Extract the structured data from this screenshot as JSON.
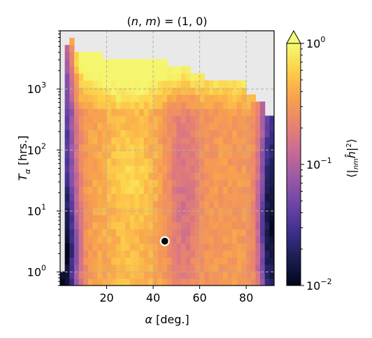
{
  "chart_data": {
    "type": "heatmap",
    "title": "(n, m) = (1, 0)",
    "xlabel": "α [deg.]",
    "ylabel": "T_α [hrs.]",
    "colorbar_label": "⟨|_{nm}ĥ|²⟩",
    "x_range": [
      0,
      92
    ],
    "y_range": [
      0.6,
      9000
    ],
    "y_scale": "log",
    "x_ticks": [
      20,
      40,
      60,
      80
    ],
    "x_tick_labels": [
      "20",
      "40",
      "60",
      "80"
    ],
    "y_ticks": [
      1,
      10,
      100,
      1000
    ],
    "y_tick_labels": [
      "10^0",
      "10^1",
      "10^2",
      "10^3"
    ],
    "color_scale": "log",
    "color_range": [
      0.01,
      1
    ],
    "colorbar_ticks": [
      0.01,
      0.1,
      1
    ],
    "colorbar_tick_labels": [
      "10^-2",
      "10^-1",
      "10^0"
    ],
    "colormap_stops": [
      "#03051a",
      "#1b1d4f",
      "#3f2f8d",
      "#6a45a7",
      "#9a5aa5",
      "#c96b94",
      "#e9836f",
      "#f8a24d",
      "#fdd049",
      "#f4fa72"
    ],
    "colorbar_extend": "max",
    "empty_color": "#e9e9e9",
    "grid": true,
    "marker": {
      "x": 45,
      "y": 3.2,
      "fill": "#000000",
      "edge": "#ffffff"
    }
  }
}
